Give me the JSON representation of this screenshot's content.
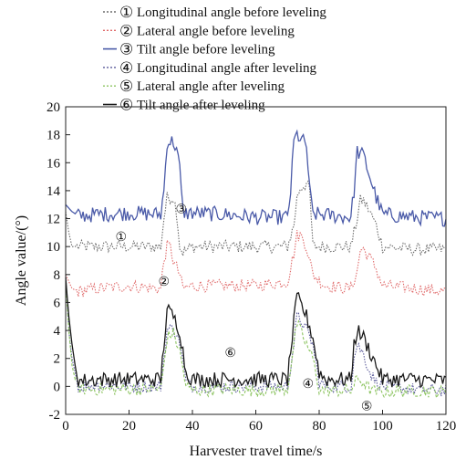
{
  "chart_data": {
    "type": "line",
    "xlabel": "Harvester travel time/s",
    "ylabel": "Angle value/(°)",
    "xlim": [
      0,
      120
    ],
    "ylim": [
      -2,
      20
    ],
    "xticks": [
      0,
      20,
      40,
      60,
      80,
      100,
      120
    ],
    "yticks": [
      -2,
      0,
      2,
      4,
      6,
      8,
      10,
      12,
      14,
      16,
      18,
      20
    ],
    "grid": false,
    "legend_position": "top",
    "series": [
      {
        "marker": "①",
        "name": "Longitudinal angle before leveling",
        "color": "#6b6b6b",
        "dash": "dotted",
        "x": [
          0,
          1,
          2,
          4,
          10,
          20,
          30,
          31,
          32,
          34,
          35,
          36,
          37,
          40,
          50,
          60,
          70,
          72,
          73,
          74,
          76,
          77,
          78,
          82,
          90,
          92,
          93,
          94,
          96,
          98,
          100,
          110,
          120
        ],
        "y": [
          12.5,
          11,
          10,
          10,
          10,
          10,
          10,
          12,
          13.5,
          13.5,
          12.5,
          10,
          9.6,
          10,
          10,
          10,
          10,
          11.5,
          13.5,
          14.2,
          14.5,
          14,
          10,
          10,
          10,
          12,
          13.3,
          13.3,
          12.5,
          11.5,
          10,
          9.8,
          9.8
        ],
        "marker_label_pos": [
          17.5,
          10.8
        ]
      },
      {
        "marker": "②",
        "name": "Lateral angle before leveling",
        "color": "#e06a6a",
        "dash": "dotted",
        "x": [
          0,
          1,
          2,
          4,
          10,
          20,
          30,
          31,
          32,
          33,
          34,
          36,
          37,
          40,
          50,
          60,
          70,
          72,
          73,
          74,
          75,
          76,
          78,
          82,
          90,
          92,
          93,
          94,
          96,
          98,
          100,
          110,
          120
        ],
        "y": [
          8,
          7.5,
          7,
          6.8,
          7,
          7.2,
          7,
          9,
          10,
          10,
          9,
          8,
          7,
          7.2,
          7.2,
          7.2,
          7.5,
          9.5,
          10.8,
          10.8,
          10.5,
          10,
          8,
          7.2,
          7,
          8.2,
          9.8,
          9.8,
          9.2,
          8.4,
          7.2,
          7,
          6.8
        ],
        "marker_label_pos": [
          31,
          7.6
        ]
      },
      {
        "marker": "③",
        "name": "Tilt angle before leveling",
        "color": "#4a5aa8",
        "dash": "solid",
        "x": [
          0,
          2,
          4,
          10,
          20,
          30,
          31,
          32,
          34,
          35,
          36,
          37,
          38,
          40,
          50,
          60,
          70,
          71,
          72,
          73,
          75,
          76,
          77,
          78,
          80,
          90,
          91,
          92,
          94,
          96,
          98,
          100,
          110,
          120
        ],
        "y": [
          13,
          12.5,
          12.2,
          12.3,
          12.4,
          12.3,
          14,
          17.5,
          17.5,
          17,
          15.5,
          12.5,
          12.4,
          12.4,
          12.3,
          12.1,
          12.1,
          14,
          17.5,
          18,
          17.5,
          17.2,
          14,
          12.3,
          12.3,
          12.1,
          14,
          16.8,
          16.5,
          15,
          13.5,
          12.3,
          12.1,
          12
        ],
        "marker_label_pos": [
          36.5,
          12.8
        ]
      },
      {
        "marker": "④",
        "name": "Longitudinal angle after leveling",
        "color": "#5a5a9a",
        "dash": "dotted",
        "x": [
          0,
          1,
          2,
          3,
          4,
          5,
          10,
          20,
          30,
          31,
          32,
          34,
          36,
          38,
          40,
          50,
          60,
          70,
          72,
          73,
          75,
          78,
          80,
          82,
          90,
          91,
          92,
          94,
          96,
          98,
          100,
          110,
          120
        ],
        "y": [
          8,
          4,
          2,
          1,
          0,
          0,
          0.1,
          0,
          0,
          2,
          4,
          4.2,
          3.2,
          0.3,
          0,
          0,
          0,
          0,
          3,
          5,
          4.5,
          3,
          0.3,
          0,
          0,
          2,
          3,
          2.3,
          1,
          0.3,
          0,
          -0.2,
          -0.3
        ],
        "marker_label_pos": [
          76.5,
          0.3
        ]
      },
      {
        "marker": "⑤",
        "name": "Lateral angle after leveling",
        "color": "#8cc460",
        "dash": "dashed",
        "x": [
          0,
          1,
          2,
          3,
          4,
          5,
          10,
          20,
          30,
          31,
          32,
          34,
          36,
          38,
          40,
          50,
          60,
          70,
          72,
          73,
          75,
          78,
          80,
          82,
          90,
          92,
          94,
          96,
          98,
          100,
          110,
          120
        ],
        "y": [
          7.5,
          4,
          1.5,
          0.5,
          0,
          -0.2,
          -0.2,
          -0.2,
          -0.2,
          1.5,
          3.5,
          3.8,
          2.5,
          0,
          -0.3,
          -0.2,
          -0.3,
          -0.2,
          3,
          4.5,
          3.5,
          2,
          -0.2,
          -0.3,
          -0.3,
          0.5,
          0.3,
          -0.2,
          -0.4,
          -0.4,
          -0.3,
          -0.4
        ],
        "marker_label_pos": [
          95,
          -1.3
        ]
      },
      {
        "marker": "⑥",
        "name": "Tilt angle after leveling",
        "color": "#1a1a1a",
        "dash": "solid",
        "x": [
          0,
          1,
          2,
          3,
          4,
          5,
          10,
          20,
          30,
          31,
          32,
          34,
          36,
          38,
          40,
          50,
          60,
          70,
          72,
          73,
          75,
          76,
          78,
          80,
          82,
          90,
          91,
          92,
          94,
          96,
          98,
          100,
          110,
          120
        ],
        "y": [
          7.8,
          5,
          3,
          1.5,
          0.5,
          0.4,
          0.5,
          0.5,
          0.5,
          3,
          5.5,
          5,
          4,
          1,
          0.5,
          0.5,
          0.5,
          0.5,
          4.5,
          6.4,
          5.5,
          5,
          3.5,
          1,
          0.5,
          0.5,
          3,
          4,
          3.5,
          2.5,
          1.5,
          0.5,
          0.5,
          0.4
        ],
        "marker_label_pos": [
          52,
          2.5
        ]
      }
    ]
  }
}
